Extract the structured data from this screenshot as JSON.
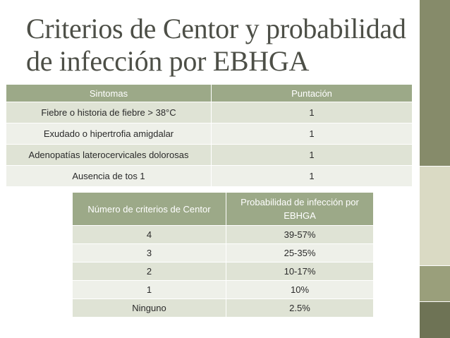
{
  "slide": {
    "title_line1": "Criterios de Centor y probabilidad",
    "title_line2": "de infección por EBHGA"
  },
  "table1": {
    "headers": [
      "Sintomas",
      "Puntación"
    ],
    "rows": [
      [
        "Fiebre o historia de fiebre > 38°C",
        "1"
      ],
      [
        "Exudado o hipertrofia amigdalar",
        "1"
      ],
      [
        "Adenopatías laterocervicales dolorosas",
        "1"
      ],
      [
        "Ausencia de tos 1",
        "1"
      ]
    ]
  },
  "table2": {
    "headers": [
      "Número de criterios de Centor",
      "Probabilidad de infección por EBHGA"
    ],
    "rows": [
      [
        "4",
        "39-57%"
      ],
      [
        "3",
        "25-35%"
      ],
      [
        "2",
        "10-17%"
      ],
      [
        "1",
        "10%"
      ],
      [
        "Ninguno",
        "2.5%"
      ]
    ]
  }
}
